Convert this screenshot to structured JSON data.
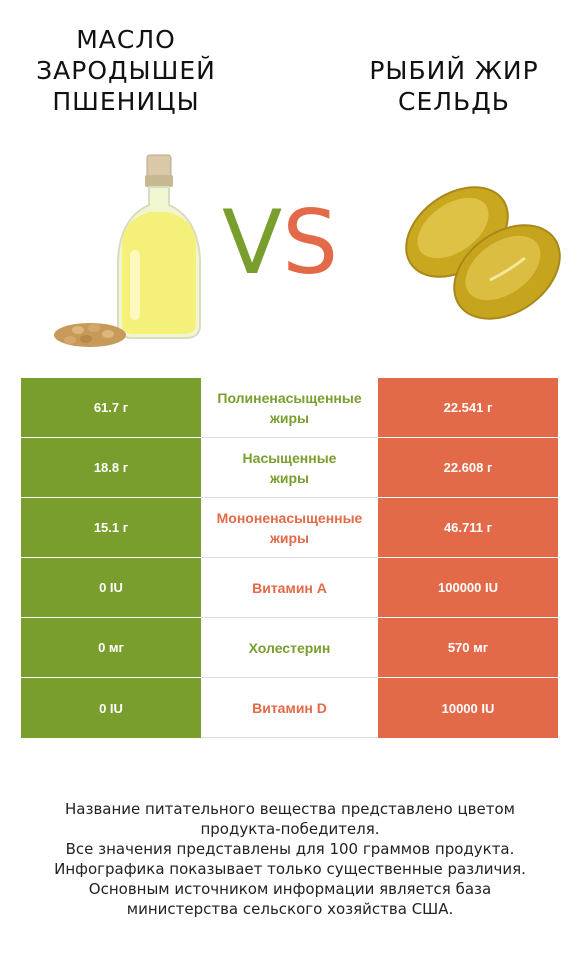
{
  "header": {
    "left_title_lines": [
      "МАСЛО",
      "ЗАРОДЫШЕЙ",
      "ПШЕНИЦЫ"
    ],
    "right_title_lines": [
      "РЫБИЙ ЖИР",
      "СЕЛЬДЬ"
    ],
    "vs_v": "V",
    "vs_s": "S"
  },
  "colors": {
    "left_accent": "#7a9e2e",
    "right_accent": "#e36a48"
  },
  "rows": [
    {
      "left": "61.7 г",
      "label_lines": [
        "Полиненасыщенные",
        "жиры"
      ],
      "right": "22.541 г",
      "winner": "left"
    },
    {
      "left": "18.8 г",
      "label_lines": [
        "Насыщенные",
        "жиры"
      ],
      "right": "22.608 г",
      "winner": "left"
    },
    {
      "left": "15.1 г",
      "label_lines": [
        "Мононенасыщенные",
        "жиры"
      ],
      "right": "46.711 г",
      "winner": "right"
    },
    {
      "left": "0 IU",
      "label_lines": [
        "Витамин A"
      ],
      "right": "100000 IU",
      "winner": "right"
    },
    {
      "left": "0 мг",
      "label_lines": [
        "Холестерин"
      ],
      "right": "570 мг",
      "winner": "left"
    },
    {
      "left": "0 IU",
      "label_lines": [
        "Витамин D"
      ],
      "right": "10000 IU",
      "winner": "right"
    }
  ],
  "footnote_lines": [
    "Название питательного вещества представлено цветом",
    "продукта-победителя.",
    "Все значения представлены для 100 граммов продукта.",
    "Инфографика показывает только существенные различия.",
    "Основным источником информации является база",
    "министерства сельского хозяйства США."
  ]
}
